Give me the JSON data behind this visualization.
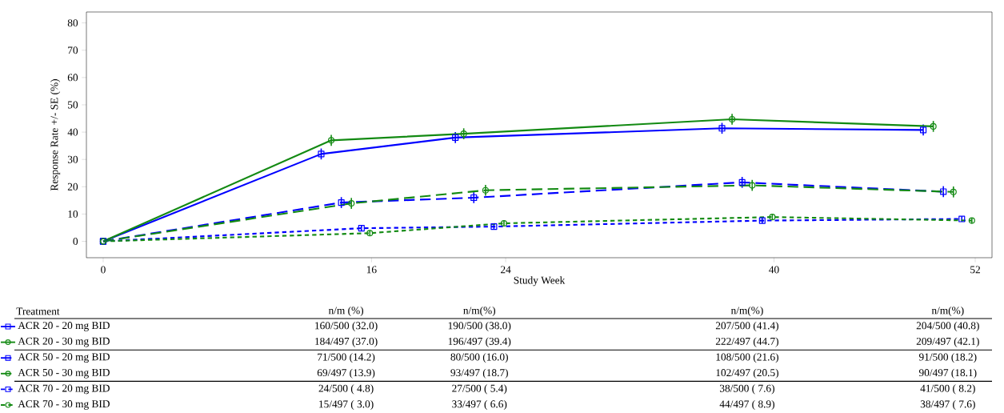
{
  "chart_data": {
    "type": "line",
    "xlabel": "Study Week",
    "ylabel": "Response Rate +/- SE (%)",
    "legend": "bottom left",
    "xlim": [
      -1,
      53
    ],
    "ylim": [
      -6,
      84
    ],
    "xticks": [
      0,
      16,
      24,
      40,
      52
    ],
    "yticks": [
      0,
      10,
      20,
      30,
      40,
      50,
      60,
      70,
      80
    ],
    "annotations": [
      "Treatment",
      "n/m (%)",
      "n/m(%)",
      "n/m(%)",
      "n/m(%)",
      "160/500 (32.0)",
      "190/500 (38.0)",
      "207/500 (41.4)",
      "204/500 (40.8)",
      "184/497 (37.0)",
      "196/497 (39.4)",
      "222/497 (44.7)",
      "209/497 (42.1)",
      "71/500 (14.2)",
      "80/500 (16.0)",
      "108/500 (21.6)",
      "91/500 (18.2)",
      "69/497 (13.9)",
      "93/497 (18.7)",
      "102/497 (20.5)",
      "90/497 (18.1)",
      "24/500 ( 4.8)",
      "27/500 ( 5.4)",
      "38/500 ( 7.6)",
      "41/500 ( 8.2)",
      "15/497 ( 3.0)",
      "33/497 ( 6.6)",
      "44/497 ( 8.9)",
      "38/497 ( 7.6)"
    ],
    "series": [
      {
        "name": "ACR 20 - 20 mg BID",
        "color": "#0000ff",
        "line_style": "solid",
        "marker": "square",
        "x": [
          0,
          13.0,
          21.0,
          36.9,
          48.9
        ],
        "values": [
          0,
          32.0,
          38.0,
          41.4,
          40.8
        ],
        "errors": [
          null,
          2,
          2,
          2,
          2
        ]
      },
      {
        "name": "ACR 20 - 30 mg BID",
        "color": "#138a13",
        "line_style": "solid",
        "marker": "circle",
        "x": [
          0,
          13.6,
          21.5,
          37.5,
          49.5
        ],
        "values": [
          0,
          37.0,
          39.4,
          44.7,
          42.1
        ],
        "errors": [
          null,
          2,
          2,
          2,
          2
        ]
      },
      {
        "name": "ACR 50 - 20 mg BID",
        "color": "#0000ff",
        "line_style": "dashed",
        "marker": "square",
        "x": [
          0,
          14.2,
          22.1,
          38.1,
          50.1
        ],
        "values": [
          0,
          14.2,
          16.0,
          21.6,
          18.2
        ],
        "errors": [
          null,
          2,
          2,
          2,
          2
        ]
      },
      {
        "name": "ACR 50 - 30 mg BID",
        "color": "#138a13",
        "line_style": "dashed",
        "marker": "circle",
        "x": [
          0,
          14.8,
          22.8,
          38.7,
          50.7
        ],
        "values": [
          0,
          13.9,
          18.7,
          20.5,
          18.1
        ],
        "errors": [
          null,
          2,
          2,
          2,
          2
        ]
      },
      {
        "name": "ACR 70 - 20 mg BID",
        "color": "#0000ff",
        "line_style": "dotted",
        "marker": "square",
        "x": [
          0,
          15.4,
          23.3,
          39.3,
          51.2
        ],
        "values": [
          0,
          4.8,
          5.4,
          7.6,
          8.2
        ],
        "errors": [
          null,
          1,
          1,
          1,
          1
        ]
      },
      {
        "name": "ACR 70 - 30 mg BID",
        "color": "#138a13",
        "line_style": "dotted",
        "marker": "circle",
        "x": [
          0,
          15.9,
          23.9,
          39.9,
          51.8
        ],
        "values": [
          0,
          3.0,
          6.6,
          8.9,
          7.6
        ],
        "errors": [
          null,
          1,
          1,
          1,
          1
        ]
      }
    ]
  }
}
